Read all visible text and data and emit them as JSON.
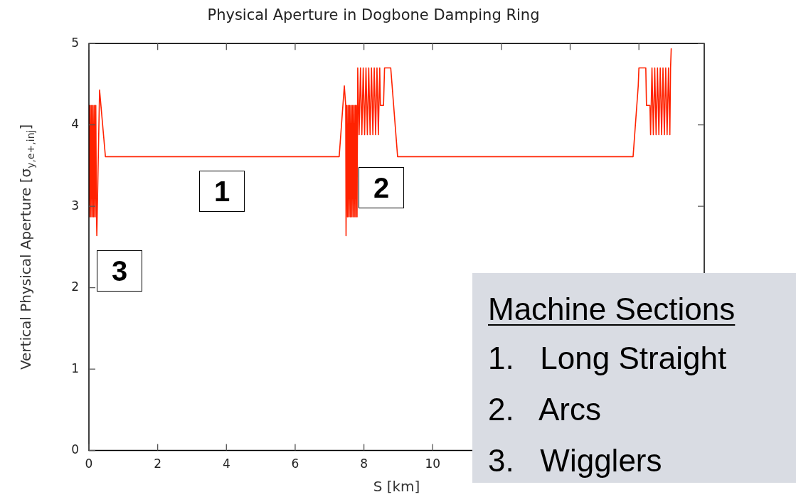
{
  "chart_data": {
    "type": "line",
    "title": "Physical Aperture in Dogbone Damping Ring",
    "xlabel": "S [km]",
    "ylabel": "Vertical Physical Aperture [σ$_{y,e+,inj}$]",
    "xlim": [
      0,
      17.9
    ],
    "xticks": [
      0,
      2,
      4,
      6,
      8,
      10,
      {
        "value": 12,
        "label": null
      },
      {
        "value": 14,
        "label": null
      },
      {
        "value": 16,
        "label": null
      }
    ],
    "ylim": [
      0,
      5
    ],
    "yticks": [
      0,
      1,
      2,
      3,
      4,
      5
    ],
    "marker": "none",
    "line_style": "solid",
    "series": [
      {
        "color": "#ff2200",
        "x": [
          0.0,
          0.02,
          0.04,
          0.06,
          0.08,
          0.1,
          0.12,
          0.14,
          0.16,
          0.18,
          0.2,
          0.22,
          0.23,
          0.31,
          0.48,
          7.28,
          7.43,
          7.47,
          7.48,
          7.5,
          7.52,
          7.54,
          7.56,
          7.58,
          7.6,
          7.62,
          7.64,
          7.66,
          7.68,
          7.7,
          7.72,
          7.74,
          7.76,
          7.78,
          7.8,
          7.82,
          7.86,
          7.9,
          7.94,
          7.98,
          8.02,
          8.06,
          8.1,
          8.14,
          8.18,
          8.22,
          8.26,
          8.3,
          8.34,
          8.38,
          8.42,
          8.46,
          8.48,
          8.57,
          8.6,
          8.78,
          8.98,
          15.83,
          15.98,
          16.0,
          16.2,
          16.22,
          16.32,
          16.34,
          16.38,
          16.42,
          16.46,
          16.5,
          16.54,
          16.58,
          16.62,
          16.66,
          16.7,
          16.74,
          16.78,
          16.82,
          16.86,
          16.9,
          16.92,
          16.94
        ],
        "values": [
          4.24,
          2.87,
          4.24,
          2.87,
          4.24,
          2.87,
          4.24,
          2.87,
          4.24,
          2.87,
          4.24,
          2.87,
          2.64,
          4.43,
          3.61,
          3.61,
          4.48,
          4.24,
          2.64,
          4.24,
          2.87,
          4.24,
          2.87,
          4.24,
          2.87,
          4.24,
          2.87,
          4.24,
          2.87,
          4.24,
          2.87,
          4.24,
          2.87,
          4.24,
          2.87,
          4.7,
          3.88,
          4.7,
          3.88,
          4.7,
          3.88,
          4.7,
          3.88,
          4.7,
          3.88,
          4.7,
          3.88,
          4.7,
          3.88,
          4.7,
          3.88,
          4.7,
          4.24,
          4.24,
          4.7,
          4.7,
          3.61,
          3.61,
          4.48,
          4.7,
          4.7,
          4.24,
          4.24,
          3.88,
          4.7,
          3.88,
          4.7,
          3.88,
          4.7,
          3.88,
          4.7,
          3.88,
          4.7,
          3.88,
          4.7,
          3.88,
          4.7,
          3.88,
          4.7,
          4.94
        ]
      }
    ],
    "annotations": [
      "1",
      "2",
      "3",
      "Machine Sections",
      "1.   Long Straight",
      "2.   Arcs",
      "3.   Wigglers"
    ]
  }
}
